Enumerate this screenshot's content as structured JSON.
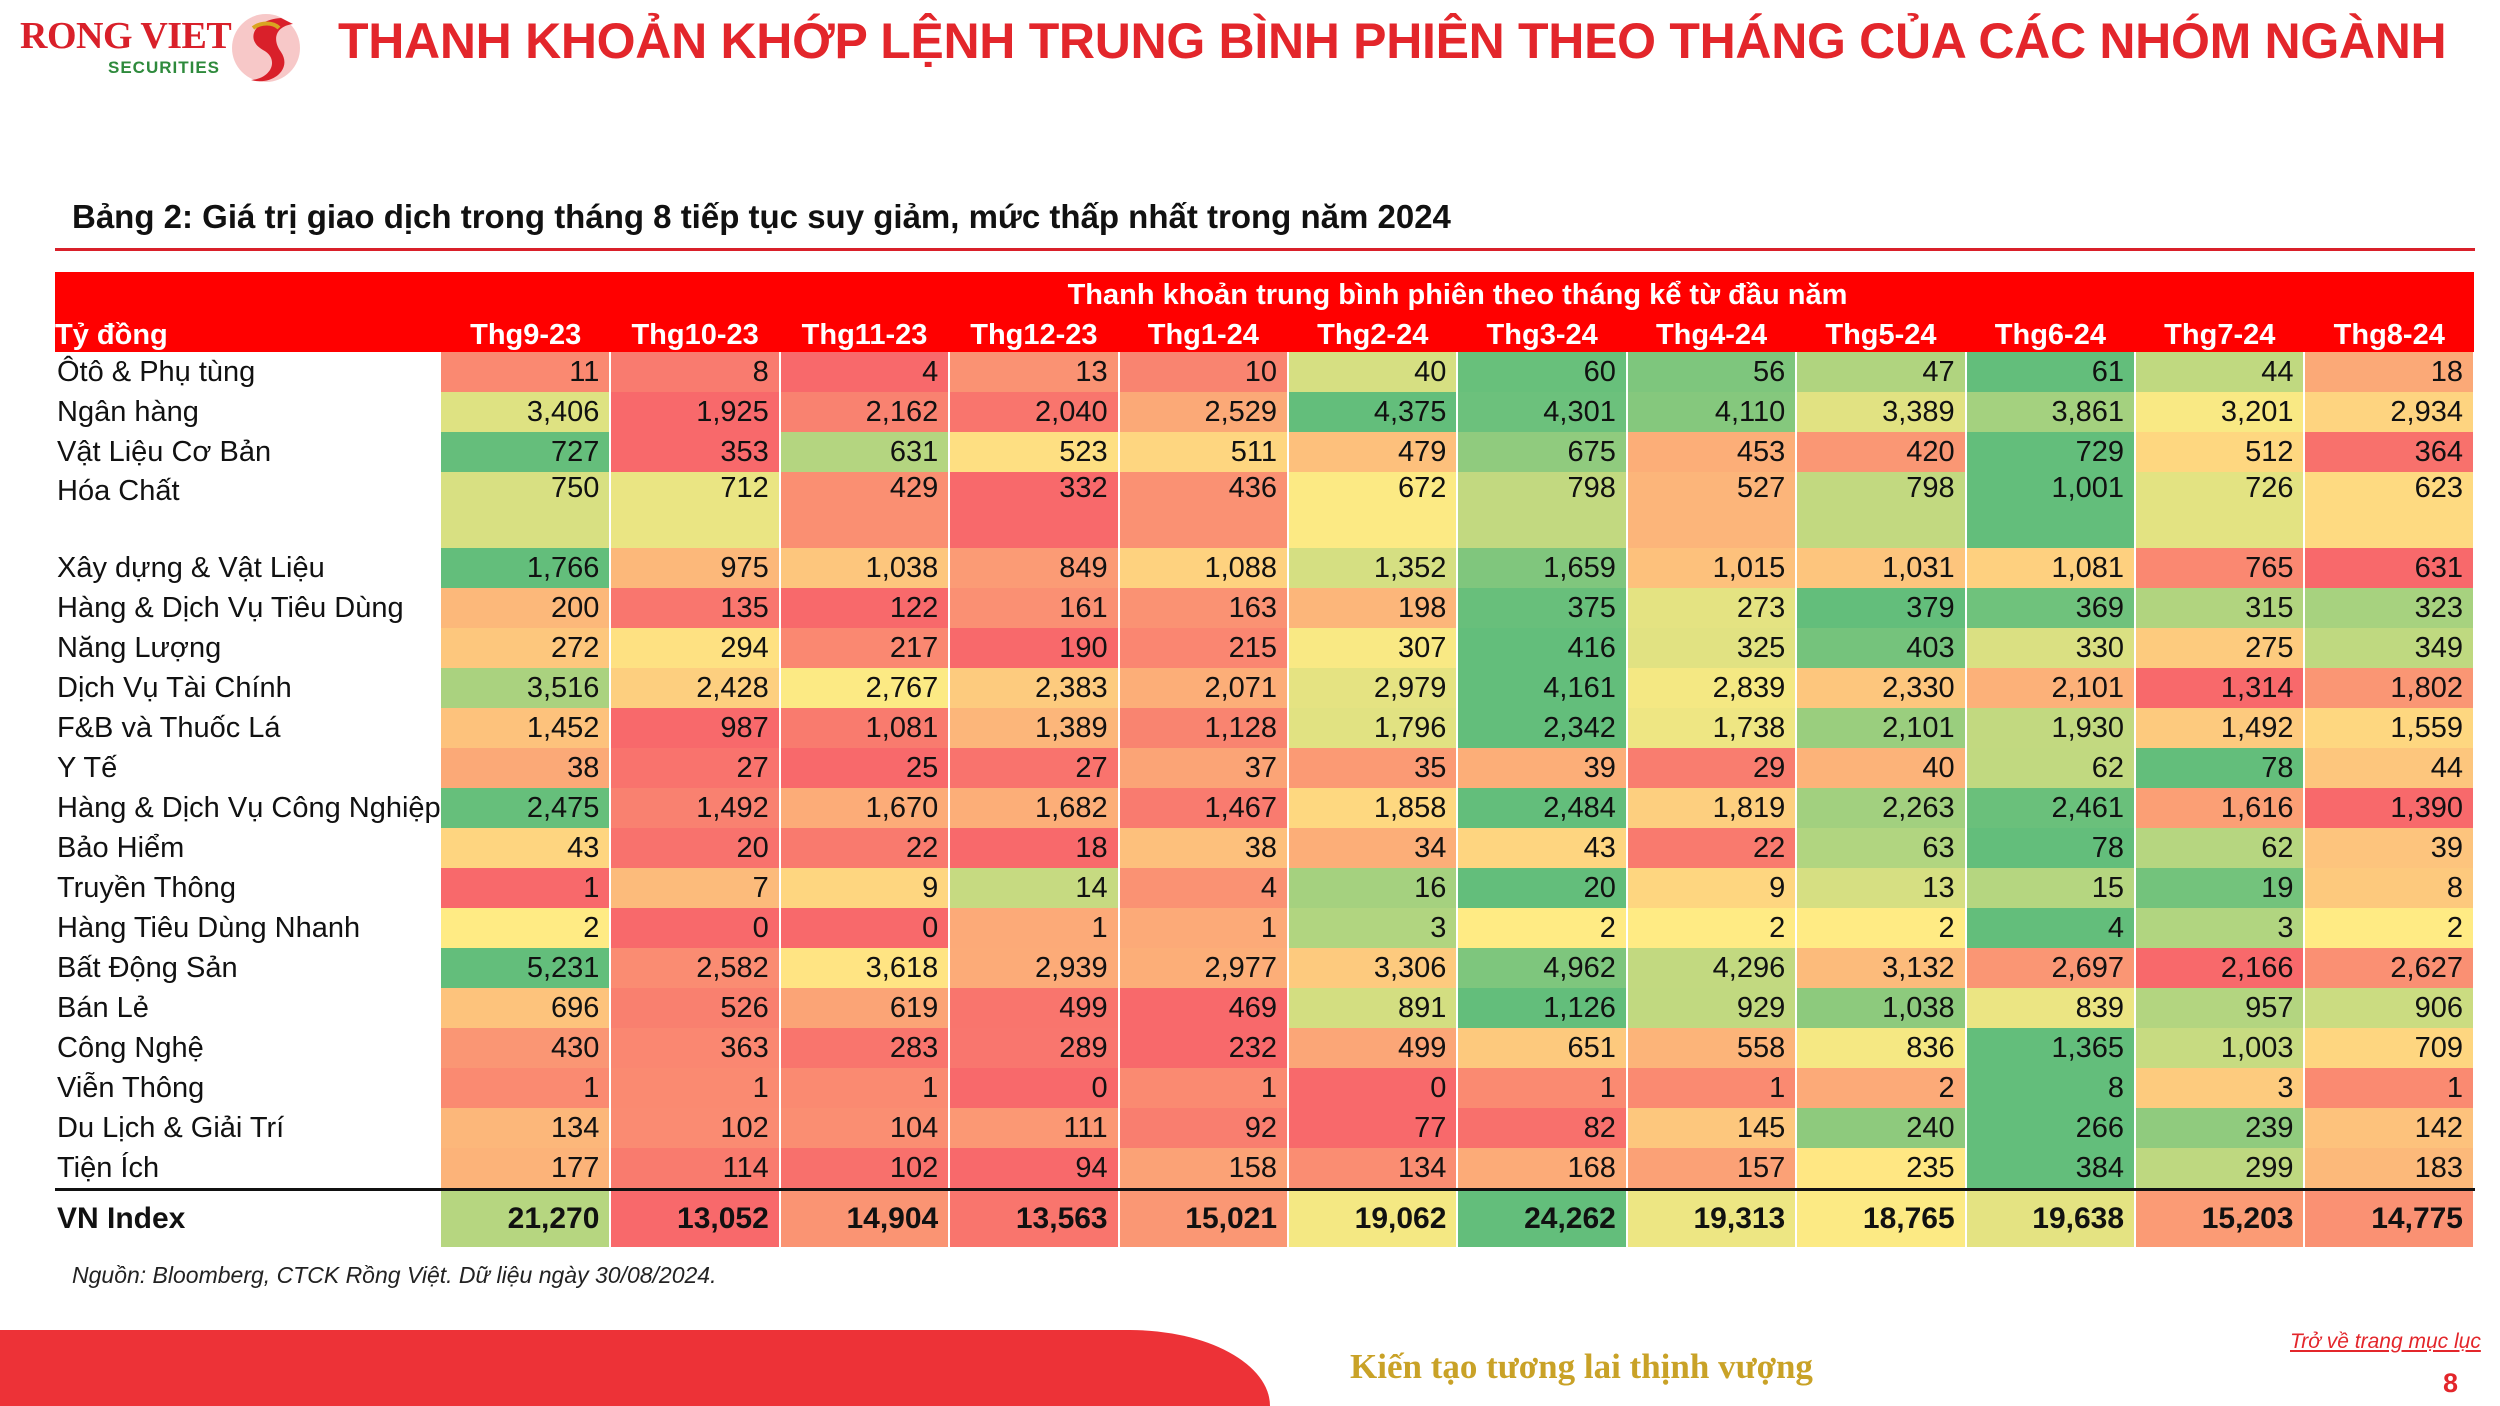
{
  "brand": {
    "name": "RONG VIET",
    "sub": "SECURITIES"
  },
  "title": "THANH KHOẢN KHỚP LỆNH TRUNG BÌNH PHIÊN THEO THÁNG CỦA CÁC NHÓM NGÀNH",
  "caption": "Bảng 2: Giá trị giao dịch trong tháng 8 tiếp tục suy giảm, mức thấp nhất trong năm 2024",
  "table": {
    "group_header": "Thanh khoản trung bình phiên theo tháng kể từ đầu năm",
    "unit_label": "Tỷ đồng",
    "columns": [
      "Thg9-23",
      "Thg10-23",
      "Thg11-23",
      "Thg12-23",
      "Thg1-24",
      "Thg2-24",
      "Thg3-24",
      "Thg4-24",
      "Thg5-24",
      "Thg6-24",
      "Thg7-24",
      "Thg8-24"
    ],
    "rows": [
      {
        "label": "Ôtô & Phụ tùng",
        "values": [
          "11",
          "8",
          "4",
          "13",
          "10",
          "40",
          "60",
          "56",
          "47",
          "61",
          "44",
          "18"
        ]
      },
      {
        "label": "Ngân hàng",
        "values": [
          "3,406",
          "1,925",
          "2,162",
          "2,040",
          "2,529",
          "4,375",
          "4,301",
          "4,110",
          "3,389",
          "3,861",
          "3,201",
          "2,934"
        ]
      },
      {
        "label": "Vật Liệu Cơ Bản",
        "values": [
          "727",
          "353",
          "631",
          "523",
          "511",
          "479",
          "675",
          "453",
          "420",
          "729",
          "512",
          "364"
        ]
      },
      {
        "label": "Hóa Chất",
        "values": [
          "750",
          "712",
          "429",
          "332",
          "436",
          "672",
          "798",
          "527",
          "798",
          "1,001",
          "726",
          "623"
        ]
      },
      {
        "label": "Xây dựng & Vật Liệu",
        "values": [
          "1,766",
          "975",
          "1,038",
          "849",
          "1,088",
          "1,352",
          "1,659",
          "1,015",
          "1,031",
          "1,081",
          "765",
          "631"
        ]
      },
      {
        "label": "Hàng & Dịch Vụ Tiêu Dùng",
        "values": [
          "200",
          "135",
          "122",
          "161",
          "163",
          "198",
          "375",
          "273",
          "379",
          "369",
          "315",
          "323"
        ]
      },
      {
        "label": "Năng Lượng",
        "values": [
          "272",
          "294",
          "217",
          "190",
          "215",
          "307",
          "416",
          "325",
          "403",
          "330",
          "275",
          "349"
        ]
      },
      {
        "label": "Dịch Vụ Tài Chính",
        "values": [
          "3,516",
          "2,428",
          "2,767",
          "2,383",
          "2,071",
          "2,979",
          "4,161",
          "2,839",
          "2,330",
          "2,101",
          "1,314",
          "1,802"
        ]
      },
      {
        "label": "F&B và Thuốc Lá",
        "values": [
          "1,452",
          "987",
          "1,081",
          "1,389",
          "1,128",
          "1,796",
          "2,342",
          "1,738",
          "2,101",
          "1,930",
          "1,492",
          "1,559"
        ]
      },
      {
        "label": "Y Tế",
        "values": [
          "38",
          "27",
          "25",
          "27",
          "37",
          "35",
          "39",
          "29",
          "40",
          "62",
          "78",
          "44"
        ]
      },
      {
        "label": "Hàng & Dịch Vụ Công Nghiệp",
        "values": [
          "2,475",
          "1,492",
          "1,670",
          "1,682",
          "1,467",
          "1,858",
          "2,484",
          "1,819",
          "2,263",
          "2,461",
          "1,616",
          "1,390"
        ]
      },
      {
        "label": "Bảo Hiểm",
        "values": [
          "43",
          "20",
          "22",
          "18",
          "38",
          "34",
          "43",
          "22",
          "63",
          "78",
          "62",
          "39"
        ]
      },
      {
        "label": "Truyền Thông",
        "values": [
          "1",
          "7",
          "9",
          "14",
          "4",
          "16",
          "20",
          "9",
          "13",
          "15",
          "19",
          "8"
        ]
      },
      {
        "label": "Hàng Tiêu Dùng Nhanh",
        "values": [
          "2",
          "0",
          "0",
          "1",
          "1",
          "3",
          "2",
          "2",
          "2",
          "4",
          "3",
          "2"
        ]
      },
      {
        "label": "Bất Động Sản",
        "values": [
          "5,231",
          "2,582",
          "3,618",
          "2,939",
          "2,977",
          "3,306",
          "4,962",
          "4,296",
          "3,132",
          "2,697",
          "2,166",
          "2,627"
        ]
      },
      {
        "label": "Bán Lẻ",
        "values": [
          "696",
          "526",
          "619",
          "499",
          "469",
          "891",
          "1,126",
          "929",
          "1,038",
          "839",
          "957",
          "906"
        ]
      },
      {
        "label": "Công Nghệ",
        "values": [
          "430",
          "363",
          "283",
          "289",
          "232",
          "499",
          "651",
          "558",
          "836",
          "1,365",
          "1,003",
          "709"
        ]
      },
      {
        "label": "Viễn Thông",
        "values": [
          "1",
          "1",
          "1",
          "0",
          "1",
          "0",
          "1",
          "1",
          "2",
          "8",
          "3",
          "1"
        ]
      },
      {
        "label": "Du Lịch & Giải Trí",
        "values": [
          "134",
          "102",
          "104",
          "111",
          "92",
          "77",
          "82",
          "145",
          "240",
          "266",
          "239",
          "142"
        ]
      },
      {
        "label": "Tiện Ích",
        "values": [
          "177",
          "114",
          "102",
          "94",
          "158",
          "134",
          "168",
          "157",
          "235",
          "384",
          "299",
          "183"
        ]
      }
    ],
    "total": {
      "label": "VN Index",
      "values": [
        "21,270",
        "13,052",
        "14,904",
        "13,563",
        "15,021",
        "19,062",
        "24,262",
        "19,313",
        "18,765",
        "19,638",
        "15,203",
        "14,775"
      ]
    }
  },
  "colors": {
    "accent_red": "#e3262b",
    "header_red": "#ff0000",
    "heat_low": "#f8696b",
    "heat_mid": "#ffeb84",
    "heat_high": "#63be7b"
  },
  "source": "Nguồn: Bloomberg, CTCK Rồng Việt. Dữ liệu ngày 30/08/2024.",
  "footer": {
    "slogan": "Kiến tạo tương lai thịnh vượng",
    "toc_link": "Trở về trang mục lục",
    "page_number": "8"
  }
}
